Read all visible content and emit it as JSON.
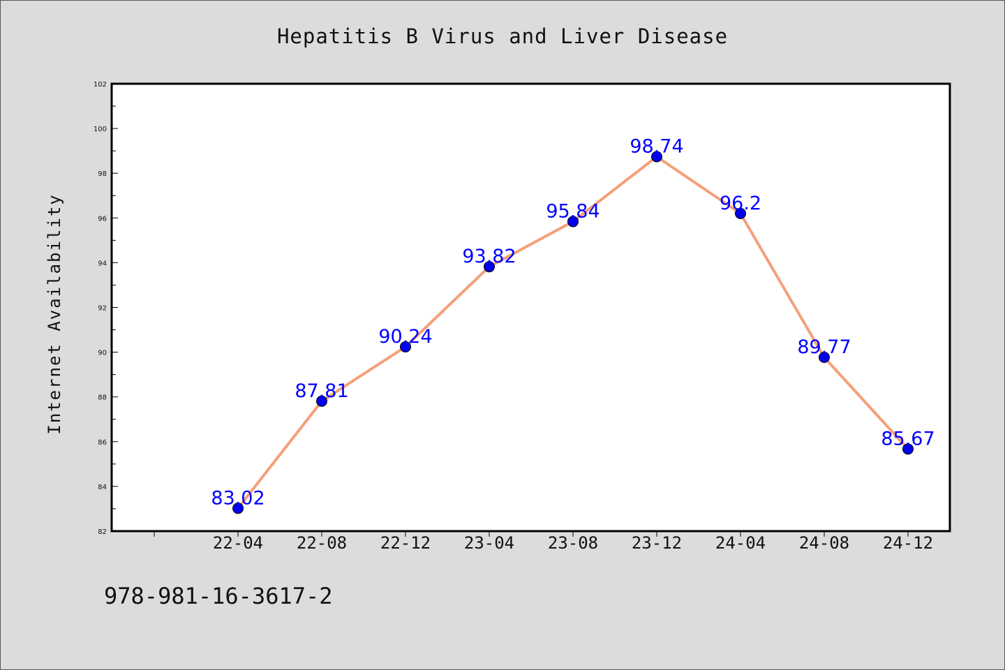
{
  "chart_data": {
    "type": "line",
    "title": "Hepatitis B Virus and Liver Disease",
    "xlabel": "",
    "ylabel": "Internet Availability",
    "categories": [
      "22-04",
      "22-08",
      "22-12",
      "23-04",
      "23-08",
      "23-12",
      "24-04",
      "24-08",
      "24-12"
    ],
    "series": [
      {
        "values": [
          83.02,
          87.81,
          90.24,
          93.82,
          95.84,
          98.74,
          96.2,
          89.77,
          85.67
        ],
        "labels": [
          "83.02",
          "87.81",
          "90.24",
          "93.82",
          "95.84",
          "98.74",
          "96.2",
          "89.77",
          "85.67"
        ],
        "line_color": "#f4a07a",
        "marker_color": "#0000ee",
        "label_color": "#0000ff"
      }
    ],
    "ylim": [
      82,
      102
    ],
    "yticks": [
      "82",
      "84",
      "86",
      "88",
      "90",
      "92",
      "94",
      "96",
      "98",
      "100",
      "102"
    ],
    "grid": false,
    "legend": "none"
  },
  "footer": {
    "code": "978-981-16-3617-2"
  },
  "colors": {
    "background": "#dcdcdc",
    "plot_background": "#ffffff",
    "axis": "#000000"
  }
}
